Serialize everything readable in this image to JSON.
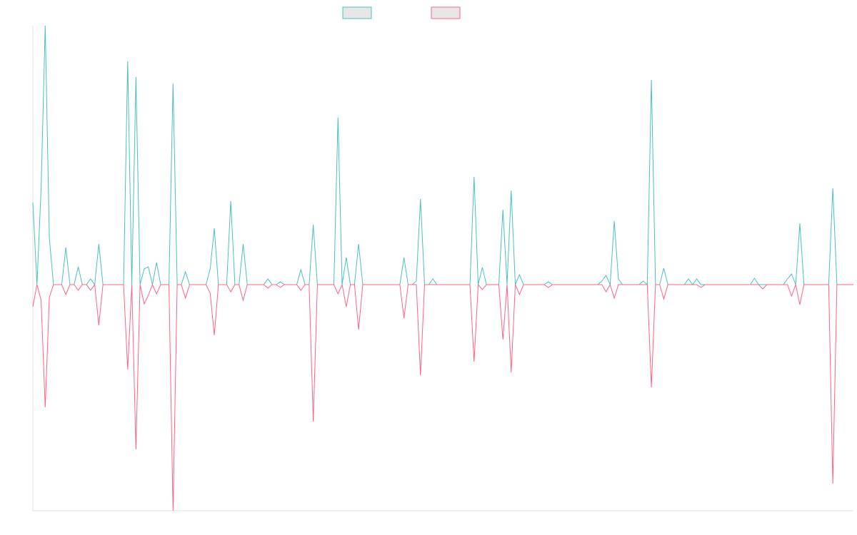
{
  "chart_data": {
    "type": "line",
    "ylim": [
      -317,
      363
    ],
    "legend": "top",
    "series": [
      {
        "color": "#4bc0c0",
        "values": [
          115,
          0,
          135,
          363,
          65,
          0,
          0,
          0,
          52,
          0,
          0,
          25,
          0,
          0,
          8,
          0,
          57,
          0,
          0,
          0,
          0,
          0,
          0,
          313,
          0,
          291,
          0,
          22,
          25,
          0,
          31,
          0,
          0,
          0,
          282,
          0,
          0,
          18,
          0,
          0,
          0,
          0,
          0,
          22,
          79,
          0,
          0,
          0,
          117,
          0,
          0,
          57,
          0,
          0,
          0,
          0,
          0,
          8,
          0,
          0,
          4,
          0,
          0,
          0,
          0,
          21,
          0,
          0,
          84,
          0,
          0,
          0,
          0,
          0,
          234,
          0,
          38,
          0,
          0,
          57,
          0,
          0,
          0,
          0,
          0,
          0,
          0,
          0,
          0,
          0,
          38,
          0,
          0,
          5,
          120,
          0,
          0,
          8,
          0,
          0,
          0,
          0,
          0,
          0,
          0,
          0,
          0,
          151,
          0,
          24,
          0,
          0,
          0,
          0,
          105,
          0,
          132,
          0,
          14,
          0,
          0,
          0,
          0,
          0,
          0,
          4,
          0,
          0,
          0,
          0,
          0,
          0,
          0,
          0,
          0,
          0,
          0,
          0,
          5,
          13,
          0,
          89,
          8,
          0,
          0,
          0,
          0,
          0,
          5,
          0,
          287,
          0,
          0,
          23,
          0,
          0,
          0,
          0,
          0,
          8,
          0,
          8,
          0,
          0,
          0,
          0,
          0,
          0,
          0,
          0,
          0,
          0,
          0,
          0,
          0,
          9,
          0,
          0,
          0,
          0,
          0,
          0,
          0,
          8,
          15,
          0,
          86,
          0,
          0,
          0,
          0,
          0,
          0,
          0,
          135,
          0,
          0,
          0,
          0,
          0
        ]
      },
      {
        "color": "#ff6384",
        "values": [
          -31,
          0,
          -22,
          -172,
          -18,
          0,
          0,
          0,
          -14,
          0,
          0,
          -8,
          0,
          0,
          -8,
          0,
          -57,
          0,
          0,
          0,
          0,
          0,
          0,
          -119,
          0,
          -231,
          0,
          -27,
          -15,
          0,
          -13,
          0,
          0,
          0,
          -317,
          0,
          0,
          -19,
          0,
          0,
          0,
          0,
          0,
          -12,
          -71,
          0,
          0,
          0,
          -10,
          0,
          0,
          -22,
          0,
          0,
          0,
          0,
          0,
          -5,
          0,
          0,
          -4,
          0,
          0,
          0,
          0,
          -8,
          0,
          0,
          -192,
          0,
          0,
          0,
          0,
          0,
          -13,
          0,
          -31,
          0,
          0,
          -63,
          0,
          0,
          0,
          0,
          0,
          0,
          0,
          0,
          0,
          0,
          -47,
          0,
          0,
          0,
          -127,
          0,
          0,
          0,
          0,
          0,
          0,
          0,
          0,
          0,
          0,
          0,
          0,
          -108,
          0,
          -7,
          0,
          0,
          0,
          0,
          -77,
          0,
          -123,
          0,
          -14,
          0,
          0,
          0,
          0,
          0,
          0,
          -4,
          0,
          0,
          0,
          0,
          0,
          0,
          0,
          0,
          0,
          0,
          0,
          0,
          0,
          -10,
          0,
          -19,
          0,
          0,
          0,
          0,
          0,
          0,
          0,
          0,
          -144,
          0,
          0,
          -20,
          0,
          0,
          0,
          0,
          0,
          0,
          0,
          0,
          -4,
          0,
          0,
          0,
          0,
          0,
          0,
          0,
          0,
          0,
          0,
          0,
          0,
          0,
          0,
          -6,
          0,
          0,
          0,
          0,
          0,
          0,
          -16,
          0,
          -28,
          0,
          0,
          0,
          0,
          0,
          0,
          0,
          -279,
          0,
          0,
          0,
          0,
          0
        ]
      }
    ]
  }
}
